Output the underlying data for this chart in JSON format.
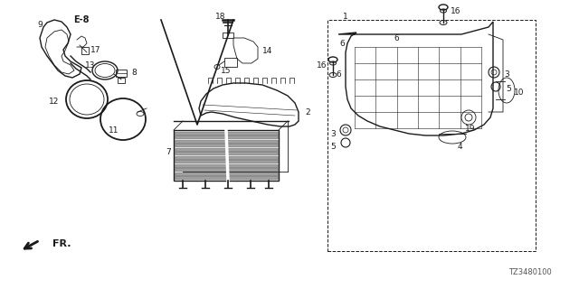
{
  "background_color": "#ffffff",
  "diagram_code": "TZ3480100",
  "fr_label": "FR.",
  "line_color": "#1a1a1a",
  "gray_color": "#888888",
  "dark_gray": "#444444",
  "label_fontsize": 6.5,
  "bold_label": "E-8",
  "figsize": [
    6.4,
    3.2
  ],
  "dpi": 100
}
